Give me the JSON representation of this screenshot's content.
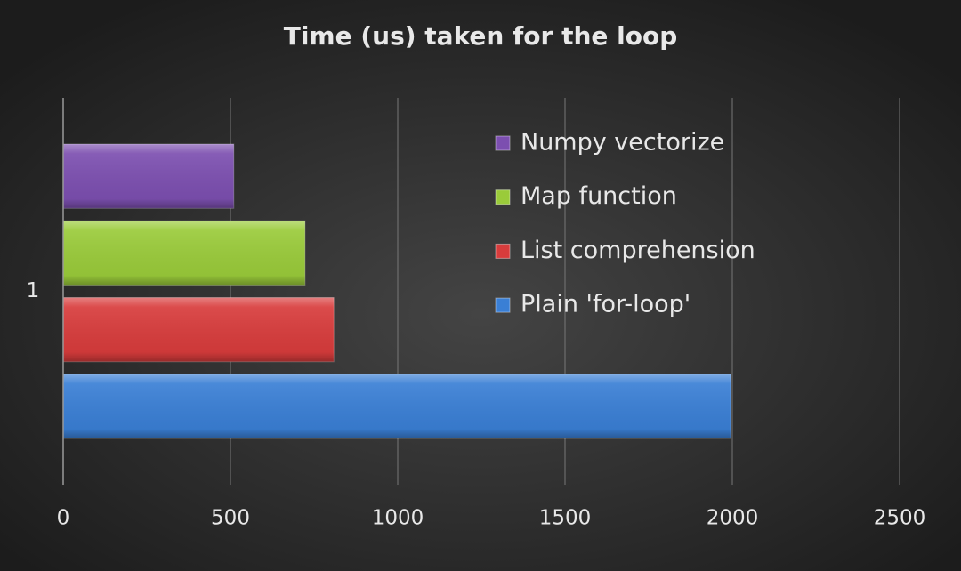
{
  "chart_data": {
    "type": "bar",
    "orientation": "horizontal",
    "title": "Time (us) taken for the loop",
    "categories": [
      "1"
    ],
    "series": [
      {
        "name": "Plain 'for-loop'",
        "color": "#3a7fd5",
        "values": [
          1995
        ]
      },
      {
        "name": "List comprehension",
        "color": "#d83c3c",
        "values": [
          809
        ]
      },
      {
        "name": "Map function",
        "color": "#9acb3a",
        "values": [
          723
        ]
      },
      {
        "name": "Numpy vectorize",
        "color": "#7c4fb0",
        "values": [
          510
        ]
      }
    ],
    "xlim": [
      0,
      2500
    ],
    "xticks": [
      0,
      500,
      1000,
      1500,
      2000,
      2500
    ],
    "grid": true,
    "legend": "upper right"
  }
}
